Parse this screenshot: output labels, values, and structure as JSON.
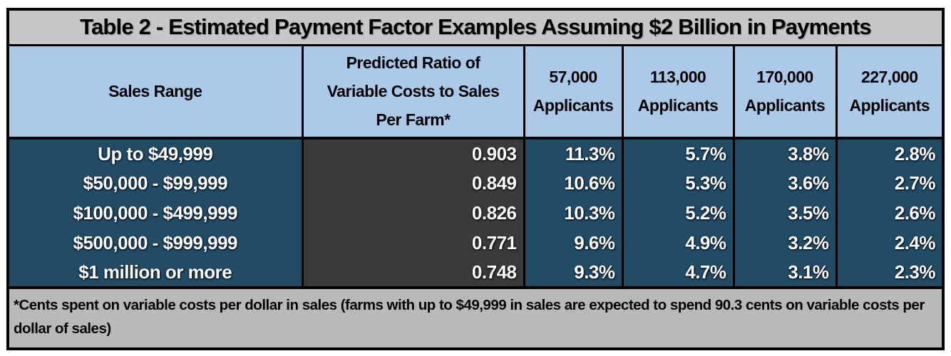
{
  "table": {
    "title": "Table 2 - Estimated Payment Factor Examples Assuming $2 Billion in Payments",
    "headers": {
      "sales_range": "Sales Range",
      "ratio": "Predicted Ratio of Variable Costs to Sales Per Farm*",
      "a57": "57,000 Applicants",
      "a113": "113,000 Applicants",
      "a170": "170,000 Applicants",
      "a227": "227,000 Applicants"
    },
    "rows": [
      {
        "sales_range": "Up to $49,999",
        "ratio": "0.903",
        "a57": "11.3%",
        "a113": "5.7%",
        "a170": "3.8%",
        "a227": "2.8%"
      },
      {
        "sales_range": "$50,000 - $99,999",
        "ratio": "0.849",
        "a57": "10.6%",
        "a113": "5.3%",
        "a170": "3.6%",
        "a227": "2.7%"
      },
      {
        "sales_range": "$100,000 - $499,999",
        "ratio": "0.826",
        "a57": "10.3%",
        "a113": "5.2%",
        "a170": "3.5%",
        "a227": "2.6%"
      },
      {
        "sales_range": "$500,000 - $999,999",
        "ratio": "0.771",
        "a57": "9.6%",
        "a113": "4.9%",
        "a170": "3.2%",
        "a227": "2.4%"
      },
      {
        "sales_range": "$1 million or more",
        "ratio": "0.748",
        "a57": "9.3%",
        "a113": "4.7%",
        "a170": "3.1%",
        "a227": "2.3%"
      }
    ],
    "footnote": "*Cents spent on variable costs per dollar in sales (farms with up to $49,999 in sales are expected to spend 90.3 cents on variable costs per dollar of sales)"
  },
  "chart_data": {
    "type": "table",
    "title": "Table 2 - Estimated Payment Factor Examples Assuming $2 Billion in Payments",
    "columns": [
      "Sales Range",
      "Predicted Ratio of Variable Costs to Sales Per Farm*",
      "57,000 Applicants",
      "113,000 Applicants",
      "170,000 Applicants",
      "227,000 Applicants"
    ],
    "rows": [
      [
        "Up to $49,999",
        0.903,
        "11.3%",
        "5.7%",
        "3.8%",
        "2.8%"
      ],
      [
        "$50,000 - $99,999",
        0.849,
        "10.6%",
        "5.3%",
        "3.6%",
        "2.7%"
      ],
      [
        "$100,000 - $499,999",
        0.826,
        "10.3%",
        "5.2%",
        "3.5%",
        "2.6%"
      ],
      [
        "$500,000 - $999,999",
        0.771,
        "9.6%",
        "4.9%",
        "3.2%",
        "2.4%"
      ],
      [
        "$1 million or more",
        0.748,
        "9.3%",
        "4.7%",
        "3.1%",
        "2.3%"
      ]
    ],
    "footnote": "*Cents spent on variable costs per dollar in sales (farms with up to $49,999 in sales are expected to spend 90.3 cents on variable costs per dollar of sales)"
  },
  "colors": {
    "title_bg": "#c7c7c7",
    "header_bg": "#adc9e9",
    "row_blue": "#224b66",
    "ratio_bg": "#3a3a3a",
    "footnote_bg": "#b9b9b9",
    "border_color": "#000000"
  }
}
